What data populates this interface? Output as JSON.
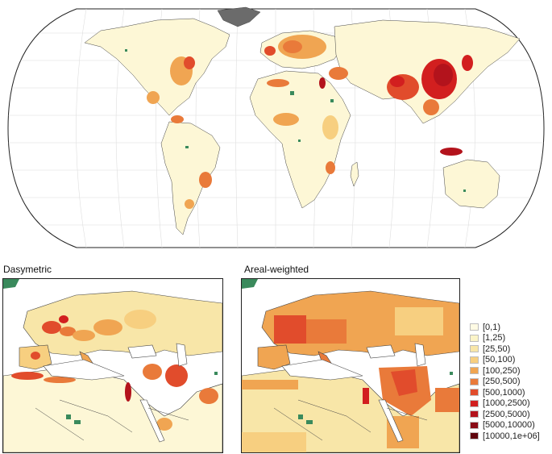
{
  "panels": {
    "left_title": "Dasymetric",
    "right_title": "Areal-weighted"
  },
  "legend": {
    "items": [
      {
        "label": "[0,1)",
        "color": "#fffbe4"
      },
      {
        "label": "[1,25)",
        "color": "#fbf4c8"
      },
      {
        "label": "[25,50)",
        "color": "#f8e6a8"
      },
      {
        "label": "[50,100)",
        "color": "#f7cf80"
      },
      {
        "label": "[100,250)",
        "color": "#f0a552"
      },
      {
        "label": "[250,500)",
        "color": "#e97a3a"
      },
      {
        "label": "[500,1000)",
        "color": "#e14c2c"
      },
      {
        "label": "[1000,2500)",
        "color": "#d21f1f"
      },
      {
        "label": "[2500,5000)",
        "color": "#b3131c"
      },
      {
        "label": "[5000,10000)",
        "color": "#8a0c16"
      },
      {
        "label": "[10000,1e+06]",
        "color": "#5e040c"
      }
    ]
  },
  "colors": {
    "ocean": "#ffffff",
    "base_land": "#fdf7d6",
    "water_bodies": "#3a8a5c",
    "ice": "#6b6b6b",
    "borders": "#333333"
  }
}
